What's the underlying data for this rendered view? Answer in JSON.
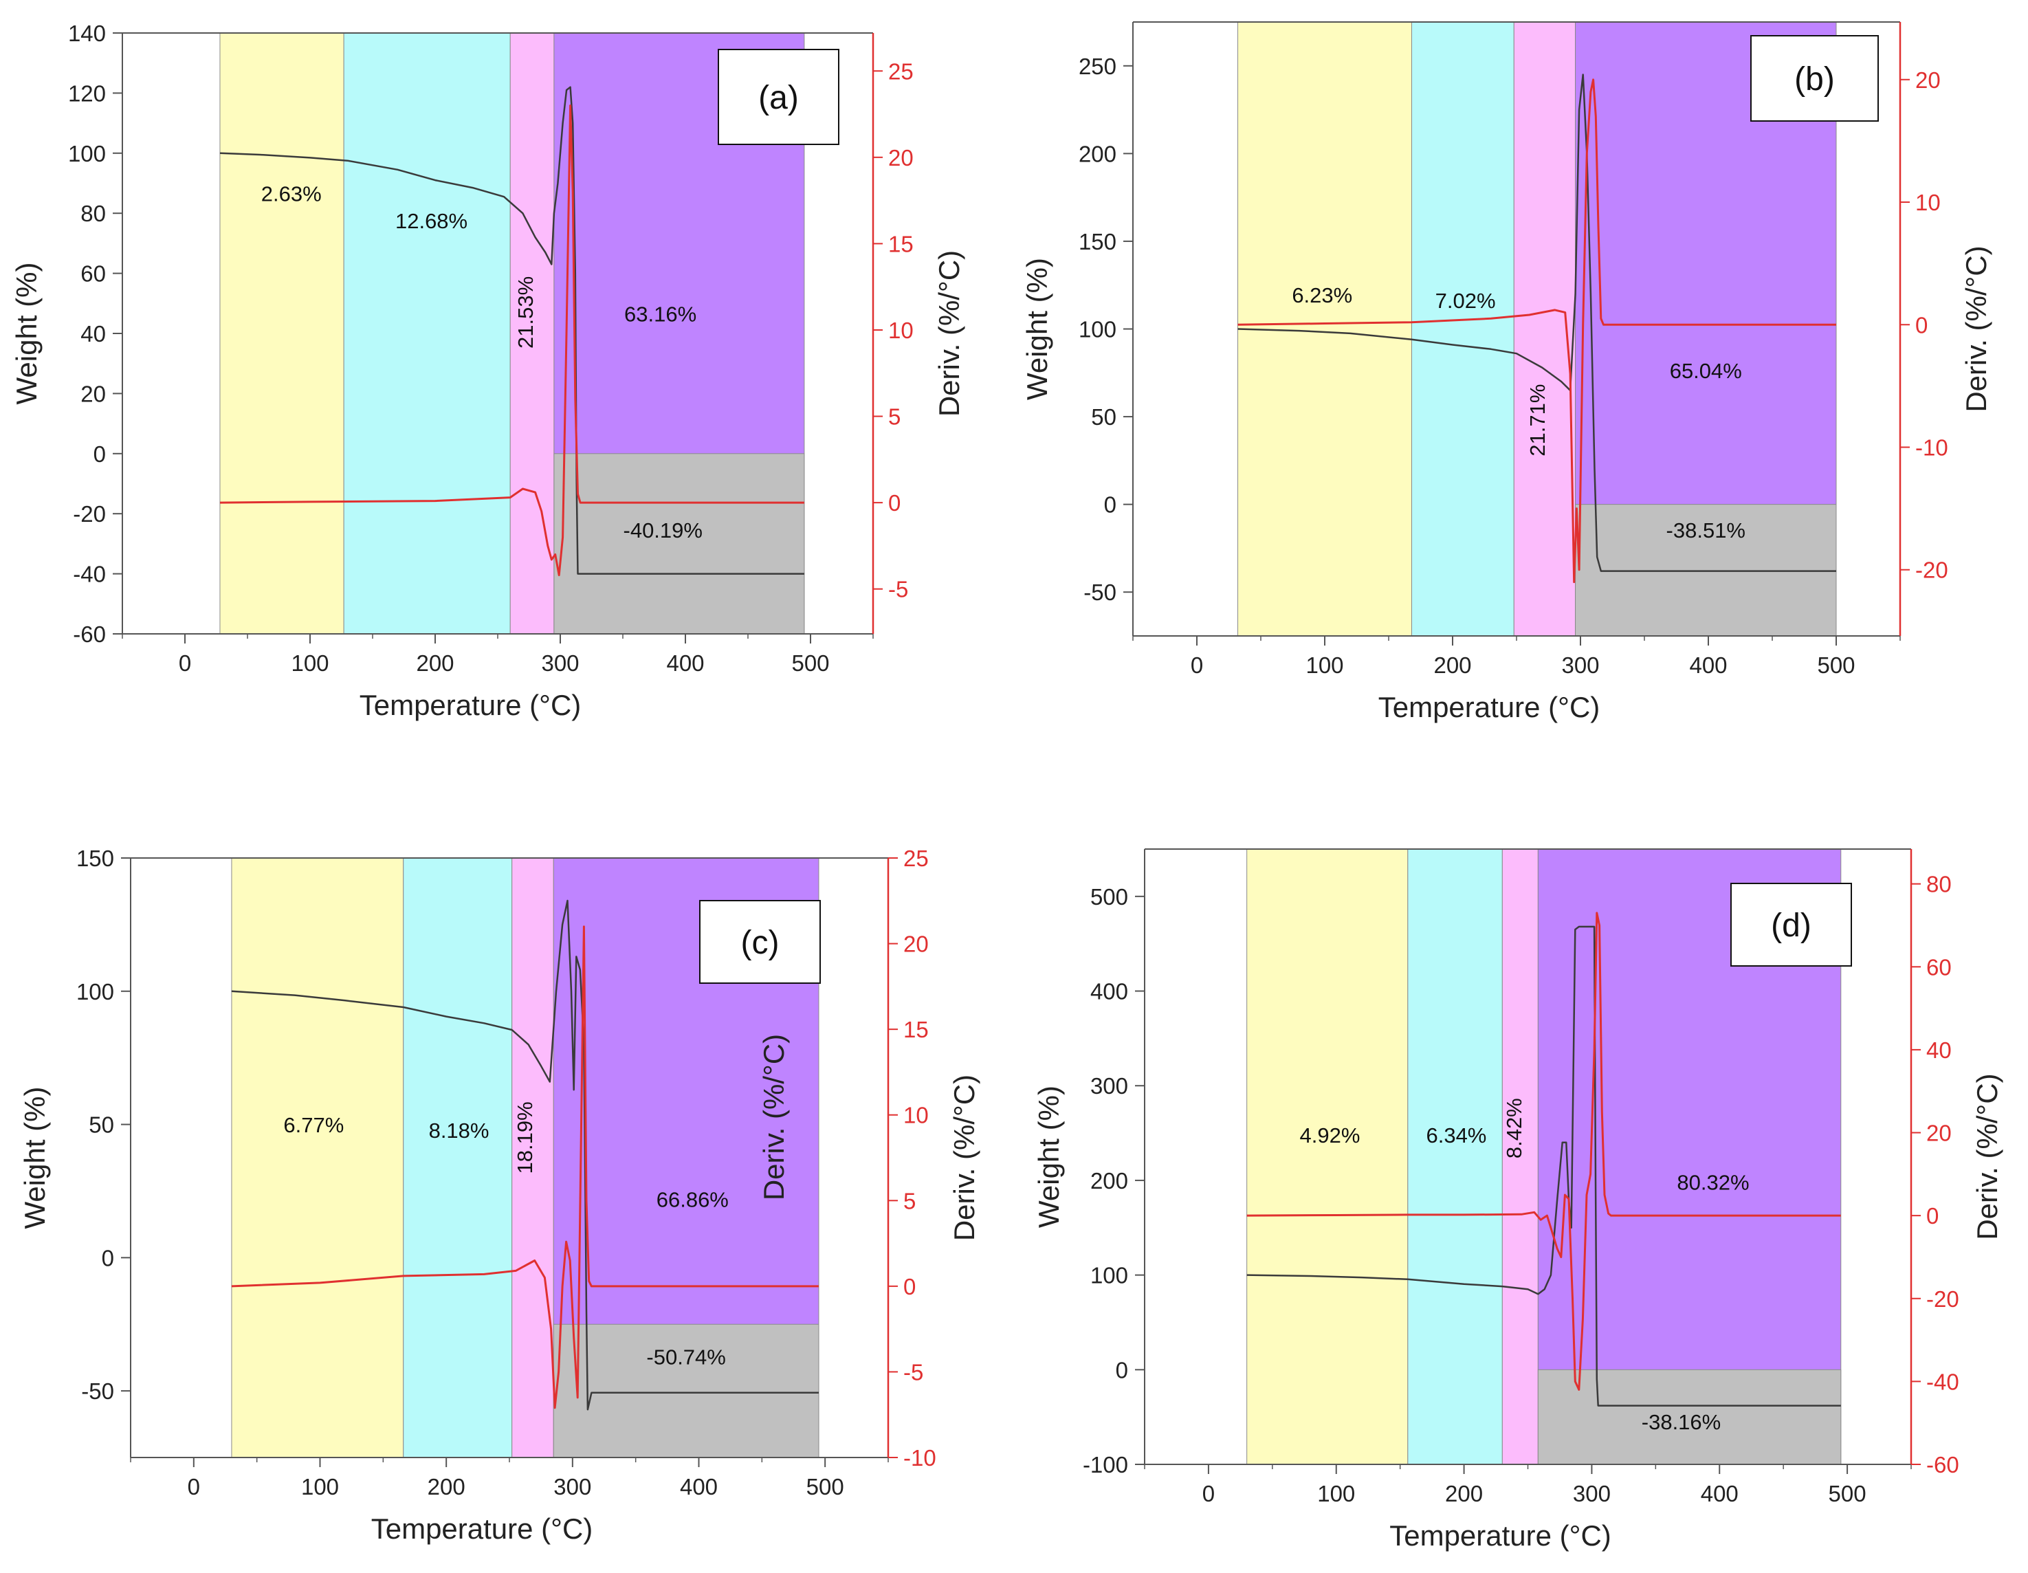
{
  "colors": {
    "band1": "#fefcbf",
    "band2": "#b8fafa",
    "band3": "#fcbcfc",
    "band4": "#bf84ff",
    "residue": "#c0c0c0",
    "weight_line": "#3a3a3a",
    "deriv_line": "#e03030",
    "right_axis": "#e03030"
  },
  "chart_data": [
    {
      "type": "line",
      "panel_label": "(a)",
      "xlabel": "Temperature (°C)",
      "ylabel": "Weight (%)",
      "y2label": "Deriv. (%/°C)",
      "xlim": [
        -50,
        550
      ],
      "ylim": [
        -60,
        140
      ],
      "y2lim": [
        -7.6,
        27.2
      ],
      "x_ticks": [
        0,
        100,
        200,
        300,
        400,
        500
      ],
      "y_ticks": [
        -60,
        -40,
        -20,
        0,
        20,
        40,
        60,
        80,
        100,
        120,
        140
      ],
      "y2_ticks": [
        -5,
        0,
        5,
        10,
        15,
        20,
        25
      ],
      "bands": [
        {
          "x0": 28,
          "x1": 127,
          "label": "2.63%",
          "lx": 85,
          "ly": 84
        },
        {
          "x0": 127,
          "x1": 260,
          "label": "12.68%",
          "lx": 197,
          "ly": 75
        },
        {
          "x0": 260,
          "x1": 295,
          "label": "21.53%",
          "lx": 278,
          "ly": 47,
          "rotate": true
        },
        {
          "x0": 295,
          "x1": 495,
          "label": "63.16%",
          "lx": 380,
          "ly": 44
        }
      ],
      "residue": {
        "x0": 295,
        "x1": 495,
        "y_top": 0,
        "label": "-40.19%",
        "lx": 382,
        "ly": -28
      },
      "series": [
        {
          "axis": "left",
          "x": [
            28,
            60,
            100,
            130,
            170,
            200,
            230,
            255,
            270,
            280,
            288,
            293,
            295,
            298,
            302,
            305,
            308,
            310,
            312,
            313,
            314,
            318,
            330,
            400,
            495
          ],
          "y": [
            100,
            99.5,
            98.5,
            97.5,
            94.5,
            91,
            88.5,
            85.5,
            80,
            72,
            67,
            63,
            80,
            90,
            110,
            121,
            122,
            110,
            60,
            -10,
            -40,
            -40,
            -40,
            -40,
            -40
          ]
        },
        {
          "axis": "right",
          "x": [
            28,
            100,
            200,
            260,
            270,
            280,
            285,
            290,
            293,
            296,
            299,
            302,
            305,
            308,
            310,
            312,
            314,
            316,
            330,
            400,
            495
          ],
          "y": [
            0,
            0.05,
            0.1,
            0.3,
            0.8,
            0.6,
            -0.5,
            -2.5,
            -3.3,
            -3.0,
            -4.2,
            -2.0,
            10,
            23,
            18,
            6,
            0.5,
            0,
            0,
            0,
            0
          ]
        }
      ]
    },
    {
      "type": "line",
      "panel_label": "(b)",
      "xlabel": "Temperature (°C)",
      "ylabel": "Weight (%)",
      "y2label": "Deriv. (%/°C)",
      "xlim": [
        -50,
        550
      ],
      "ylim": [
        -75,
        275
      ],
      "y2lim": [
        -25.4,
        24.7
      ],
      "x_ticks": [
        0,
        100,
        200,
        300,
        400,
        500
      ],
      "y_ticks": [
        -50,
        0,
        50,
        100,
        150,
        200,
        250
      ],
      "y2_ticks": [
        -20,
        -10,
        0,
        10,
        20
      ],
      "bands": [
        {
          "x0": 32,
          "x1": 168,
          "label": "6.23%",
          "lx": 98,
          "ly": 115
        },
        {
          "x0": 168,
          "x1": 248,
          "label": "7.02%",
          "lx": 210,
          "ly": 112
        },
        {
          "x0": 248,
          "x1": 296,
          "label": "21.71%",
          "lx": 272,
          "ly": 48,
          "rotate": true
        },
        {
          "x0": 296,
          "x1": 500,
          "label": "65.04%",
          "lx": 398,
          "ly": 72
        }
      ],
      "residue": {
        "x0": 296,
        "x1": 500,
        "y_top": 0,
        "label": "-38.51%",
        "lx": 398,
        "ly": -19
      },
      "series": [
        {
          "axis": "left",
          "x": [
            32,
            80,
            120,
            168,
            200,
            230,
            250,
            270,
            285,
            292,
            296,
            299,
            302,
            305,
            308,
            311,
            313,
            316,
            330,
            400,
            500
          ],
          "y": [
            100,
            99,
            97.5,
            94,
            91,
            88.5,
            86,
            78,
            70,
            65,
            120,
            225,
            245,
            200,
            120,
            20,
            -30,
            -38,
            -38,
            -38,
            -38
          ]
        },
        {
          "axis": "right",
          "x": [
            32,
            100,
            168,
            230,
            260,
            280,
            288,
            292,
            295,
            297,
            299,
            302,
            305,
            308,
            310,
            312,
            314,
            316,
            318,
            330,
            400,
            500
          ],
          "y": [
            0,
            0.1,
            0.2,
            0.5,
            0.8,
            1.2,
            1.0,
            -4,
            -21,
            -15,
            -20,
            0,
            14,
            19,
            20,
            17,
            8,
            0.5,
            0,
            0,
            0,
            0
          ]
        }
      ]
    },
    {
      "type": "line",
      "panel_label": "(c)",
      "xlabel": "Temperature (°C)",
      "ylabel": "Weight (%)",
      "y2label": "Deriv. (%/°C)",
      "y2label_extra": "Deriv. (%/°C)",
      "xlim": [
        -50,
        550
      ],
      "ylim": [
        -75,
        150
      ],
      "y2lim": [
        -10,
        25
      ],
      "x_ticks": [
        0,
        100,
        200,
        300,
        400,
        500
      ],
      "y_ticks": [
        -50,
        0,
        50,
        100,
        150
      ],
      "y2_ticks": [
        -10,
        -5,
        0,
        5,
        10,
        15,
        20,
        25
      ],
      "y2_tick_labels": [
        "-10",
        "-5",
        "0",
        "5",
        "10",
        "15",
        "20",
        "25"
      ],
      "bands": [
        {
          "x0": 30,
          "x1": 166,
          "label": "6.77%",
          "lx": 95,
          "ly": 47
        },
        {
          "x0": 166,
          "x1": 252,
          "label": "8.18%",
          "lx": 210,
          "ly": 45
        },
        {
          "x0": 252,
          "x1": 285,
          "label": "18.19%",
          "lx": 268,
          "ly": 45,
          "rotate": true
        },
        {
          "x0": 285,
          "x1": 495,
          "label": "66.86%",
          "lx": 395,
          "ly": 19
        }
      ],
      "residue": {
        "x0": 285,
        "x1": 495,
        "y_top": -25,
        "label": "-50.74%",
        "lx": 390,
        "ly": -40
      },
      "series": [
        {
          "axis": "left",
          "x": [
            30,
            80,
            120,
            166,
            200,
            230,
            252,
            265,
            275,
            282,
            287,
            292,
            296,
            299,
            301,
            303,
            306,
            309,
            311,
            312,
            315,
            330,
            400,
            495
          ],
          "y": [
            100,
            98.5,
            96.5,
            94,
            90.5,
            88,
            85.5,
            80,
            72,
            66,
            100,
            125,
            134,
            100,
            63,
            113,
            108,
            80,
            -20,
            -57,
            -50.7,
            -50.7,
            -50.7,
            -50.7
          ]
        },
        {
          "axis": "right",
          "x": [
            30,
            100,
            166,
            230,
            255,
            270,
            278,
            283,
            286,
            289,
            292,
            295,
            298,
            301,
            304,
            307,
            309,
            311,
            313,
            315,
            320,
            400,
            495
          ],
          "y": [
            0,
            0.2,
            0.6,
            0.7,
            0.9,
            1.5,
            0.5,
            -2.5,
            -7.1,
            -5,
            0,
            2.6,
            1.5,
            -3,
            -6.5,
            10,
            21,
            5,
            0.3,
            0,
            0,
            0,
            0
          ]
        }
      ]
    },
    {
      "type": "line",
      "panel_label": "(d)",
      "xlabel": "Temperature (°C)",
      "ylabel": "Weight (%)",
      "y2label": "Deriv. (%/°C)",
      "xlim": [
        -50,
        550
      ],
      "ylim": [
        -100,
        550
      ],
      "y2lim": [
        -60,
        88.4
      ],
      "x_ticks": [
        0,
        100,
        200,
        300,
        400,
        500
      ],
      "y_ticks": [
        -100,
        0,
        100,
        200,
        300,
        400,
        500
      ],
      "y2_ticks": [
        -60,
        -40,
        -20,
        0,
        20,
        40,
        60,
        80
      ],
      "bands": [
        {
          "x0": 30,
          "x1": 156,
          "label": "4.92%",
          "lx": 95,
          "ly": 240
        },
        {
          "x0": 156,
          "x1": 230,
          "label": "6.34%",
          "lx": 194,
          "ly": 240
        },
        {
          "x0": 230,
          "x1": 258,
          "label": "8.42%",
          "lx": 245,
          "ly": 255,
          "rotate": true
        },
        {
          "x0": 258,
          "x1": 495,
          "label": "80.32%",
          "lx": 395,
          "ly": 190
        }
      ],
      "residue": {
        "x0": 258,
        "x1": 495,
        "y_top": 0,
        "label": "-38.16%",
        "lx": 370,
        "ly": -63
      },
      "series": [
        {
          "axis": "left",
          "x": [
            30,
            80,
            120,
            156,
            200,
            230,
            250,
            258,
            263,
            268,
            273,
            277,
            280,
            282,
            284,
            287,
            290,
            295,
            300,
            302,
            303,
            304,
            305,
            307,
            330,
            400,
            495
          ],
          "y": [
            100,
            99,
            97.5,
            95.5,
            90.5,
            88,
            85,
            80,
            85,
            100,
            180,
            240,
            240,
            180,
            150,
            465,
            468,
            468,
            468,
            468,
            200,
            -10,
            -38,
            -38,
            -38,
            -38,
            -38
          ]
        },
        {
          "axis": "right",
          "x": [
            30,
            100,
            156,
            200,
            245,
            255,
            260,
            265,
            270,
            273,
            276,
            279,
            282,
            285,
            287,
            290,
            293,
            296,
            299,
            302,
            304,
            306,
            308,
            310,
            313,
            315,
            320,
            400,
            495
          ],
          "y": [
            0,
            0.1,
            0.2,
            0.2,
            0.3,
            0.8,
            -1,
            0,
            -5,
            -8,
            -10,
            5,
            4,
            -20,
            -40,
            -42,
            -25,
            5,
            10,
            40,
            73,
            70,
            25,
            5,
            0.5,
            0,
            0,
            0,
            0
          ]
        }
      ]
    }
  ]
}
